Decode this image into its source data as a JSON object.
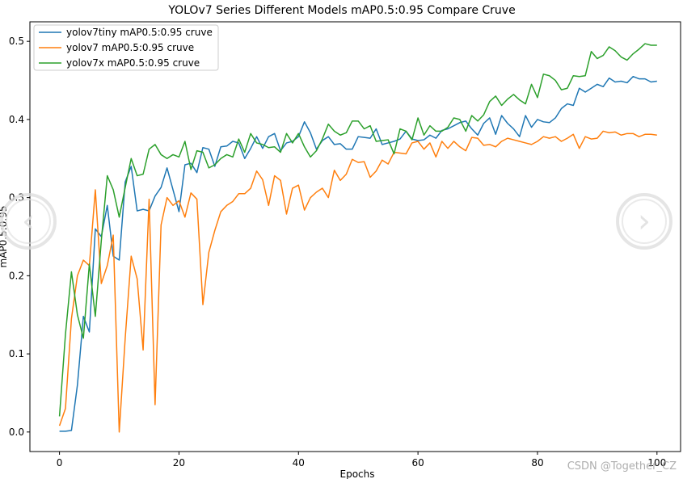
{
  "chart_data": {
    "type": "line",
    "title": "YOLOv7 Series Different Models mAP0.5:0.95 Compare Cruve",
    "xlabel": "Epochs",
    "ylabel": "mAP0.5:0.95",
    "xlim": [
      -4.95,
      103.95
    ],
    "ylim": [
      -0.025,
      0.525
    ],
    "xticks": [
      0,
      20,
      40,
      60,
      80,
      100
    ],
    "yticks": [
      0.0,
      0.1,
      0.2,
      0.3,
      0.4,
      0.5
    ],
    "legend_position": "top-left",
    "series": [
      {
        "name": "yolov7tiny mAP0.5:0.95 cruve",
        "color": "#1f77b4",
        "values": [
          0.001,
          0.001,
          0.002,
          0.06,
          0.148,
          0.128,
          0.26,
          0.25,
          0.29,
          0.225,
          0.22,
          0.32,
          0.34,
          0.283,
          0.285,
          0.283,
          0.302,
          0.313,
          0.338,
          0.31,
          0.282,
          0.342,
          0.344,
          0.332,
          0.364,
          0.362,
          0.34,
          0.365,
          0.366,
          0.372,
          0.37,
          0.35,
          0.363,
          0.378,
          0.363,
          0.378,
          0.382,
          0.36,
          0.37,
          0.372,
          0.378,
          0.397,
          0.383,
          0.362,
          0.373,
          0.378,
          0.368,
          0.369,
          0.362,
          0.362,
          0.378,
          0.377,
          0.376,
          0.388,
          0.368,
          0.37,
          0.372,
          0.375,
          0.385,
          0.375,
          0.373,
          0.374,
          0.38,
          0.376,
          0.386,
          0.388,
          0.392,
          0.396,
          0.398,
          0.388,
          0.38,
          0.395,
          0.402,
          0.381,
          0.405,
          0.395,
          0.388,
          0.378,
          0.405,
          0.39,
          0.4,
          0.397,
          0.396,
          0.402,
          0.414,
          0.42,
          0.418,
          0.44,
          0.435,
          0.44,
          0.445,
          0.442,
          0.453,
          0.448,
          0.449,
          0.447,
          0.455,
          0.452,
          0.452,
          0.448,
          0.449
        ]
      },
      {
        "name": "yolov7 mAP0.5:0.95 cruve",
        "color": "#ff7f0e",
        "values": [
          0.008,
          0.03,
          0.145,
          0.2,
          0.22,
          0.213,
          0.31,
          0.19,
          0.213,
          0.252,
          0.0,
          0.12,
          0.225,
          0.196,
          0.105,
          0.298,
          0.035,
          0.265,
          0.3,
          0.29,
          0.296,
          0.275,
          0.306,
          0.298,
          0.163,
          0.23,
          0.258,
          0.282,
          0.29,
          0.295,
          0.305,
          0.305,
          0.312,
          0.334,
          0.323,
          0.29,
          0.328,
          0.322,
          0.279,
          0.312,
          0.316,
          0.284,
          0.3,
          0.307,
          0.312,
          0.3,
          0.335,
          0.322,
          0.33,
          0.349,
          0.345,
          0.346,
          0.326,
          0.334,
          0.348,
          0.343,
          0.358,
          0.357,
          0.356,
          0.37,
          0.372,
          0.362,
          0.37,
          0.352,
          0.372,
          0.363,
          0.372,
          0.365,
          0.36,
          0.377,
          0.376,
          0.367,
          0.368,
          0.365,
          0.372,
          0.376,
          0.374,
          0.372,
          0.37,
          0.368,
          0.372,
          0.378,
          0.376,
          0.378,
          0.372,
          0.376,
          0.381,
          0.363,
          0.378,
          0.375,
          0.376,
          0.385,
          0.383,
          0.384,
          0.38,
          0.382,
          0.382,
          0.378,
          0.381,
          0.381,
          0.38
        ]
      },
      {
        "name": "yolov7x mAP0.5:0.95 cruve",
        "color": "#2ca02c",
        "values": [
          0.02,
          0.125,
          0.205,
          0.15,
          0.12,
          0.215,
          0.148,
          0.245,
          0.328,
          0.31,
          0.275,
          0.313,
          0.35,
          0.328,
          0.33,
          0.362,
          0.368,
          0.355,
          0.35,
          0.355,
          0.352,
          0.372,
          0.336,
          0.36,
          0.358,
          0.338,
          0.342,
          0.35,
          0.355,
          0.352,
          0.375,
          0.358,
          0.382,
          0.37,
          0.368,
          0.364,
          0.365,
          0.358,
          0.382,
          0.37,
          0.382,
          0.365,
          0.352,
          0.36,
          0.375,
          0.394,
          0.385,
          0.38,
          0.383,
          0.398,
          0.398,
          0.388,
          0.392,
          0.372,
          0.373,
          0.374,
          0.356,
          0.388,
          0.385,
          0.374,
          0.402,
          0.38,
          0.392,
          0.385,
          0.385,
          0.39,
          0.402,
          0.4,
          0.385,
          0.405,
          0.398,
          0.406,
          0.423,
          0.43,
          0.418,
          0.426,
          0.432,
          0.425,
          0.42,
          0.445,
          0.428,
          0.458,
          0.456,
          0.45,
          0.438,
          0.44,
          0.456,
          0.455,
          0.456,
          0.487,
          0.478,
          0.482,
          0.493,
          0.488,
          0.48,
          0.476,
          0.484,
          0.49,
          0.497,
          0.495,
          0.495
        ]
      }
    ]
  },
  "watermark": "CSDN @Together_CZ",
  "nav": {
    "prev_icon": "chevron-left-icon",
    "next_icon": "chevron-right-icon"
  }
}
